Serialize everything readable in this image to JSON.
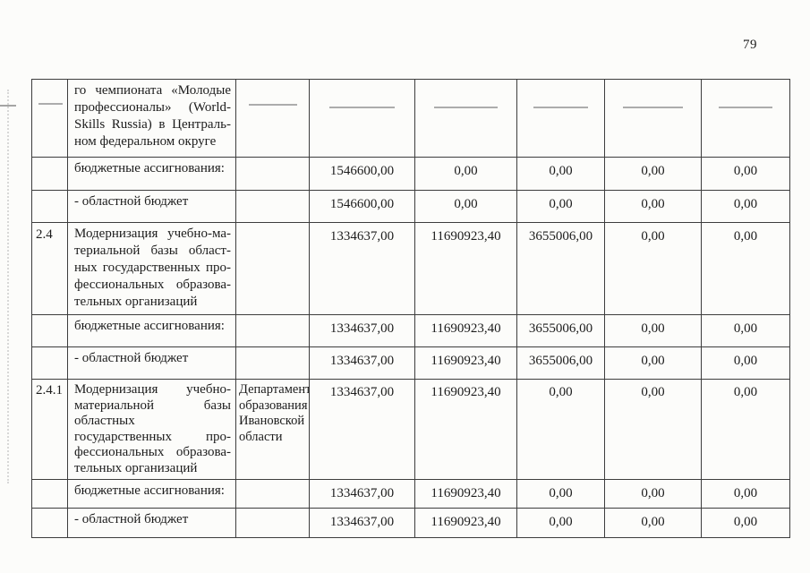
{
  "page": {
    "number": "79"
  },
  "table": {
    "rows": [
      {
        "num": "",
        "name_lines": [
          "го чемпионата «Молодые",
          "профессионалы» (World-",
          "Skills Russia) в Централь-",
          "ном федеральном округе"
        ],
        "executor_lines": [],
        "values": [
          "",
          "",
          "",
          "",
          ""
        ],
        "artifact_dashes": true
      },
      {
        "num": "",
        "name_lines": [
          "бюджетные ассигнования:"
        ],
        "executor_lines": [],
        "values": [
          "1546600,00",
          "0,00",
          "0,00",
          "0,00",
          "0,00"
        ]
      },
      {
        "num": "",
        "name_lines": [
          "- областной бюджет"
        ],
        "executor_lines": [],
        "values": [
          "1546600,00",
          "0,00",
          "0,00",
          "0,00",
          "0,00"
        ]
      },
      {
        "num": "2.4",
        "name_lines": [
          "Модернизация учебно-ма-",
          "териальной базы област-",
          "ных государственных про-",
          "фессиональных образова-",
          "тельных организаций"
        ],
        "executor_lines": [],
        "values": [
          "1334637,00",
          "11690923,40",
          "3655006,00",
          "0,00",
          "0,00"
        ]
      },
      {
        "num": "",
        "name_lines": [
          "бюджетные ассигнования:"
        ],
        "executor_lines": [],
        "values": [
          "1334637,00",
          "11690923,40",
          "3655006,00",
          "0,00",
          "0,00"
        ]
      },
      {
        "num": "",
        "name_lines": [
          "- областной бюджет"
        ],
        "executor_lines": [],
        "values": [
          "1334637,00",
          "11690923,40",
          "3655006,00",
          "0,00",
          "0,00"
        ]
      },
      {
        "num": "2.4.1",
        "name_lines": [
          "Модернизация учебно-",
          "материальной базы",
          "областных",
          "государственных про-",
          "фессиональных образова-",
          "тельных организаций"
        ],
        "executor_lines": [
          "Департамент",
          "образования",
          "Ивановской",
          "области"
        ],
        "values": [
          "1334637,00",
          "11690923,40",
          "0,00",
          "0,00",
          "0,00"
        ]
      },
      {
        "num": "",
        "name_lines": [
          "бюджетные ассигнования:"
        ],
        "executor_lines": [],
        "values": [
          "1334637,00",
          "11690923,40",
          "0,00",
          "0,00",
          "0,00"
        ]
      },
      {
        "num": "",
        "name_lines": [
          "- областной бюджет"
        ],
        "executor_lines": [],
        "values": [
          "1334637,00",
          "11690923,40",
          "0,00",
          "0,00",
          "0,00"
        ]
      }
    ]
  }
}
